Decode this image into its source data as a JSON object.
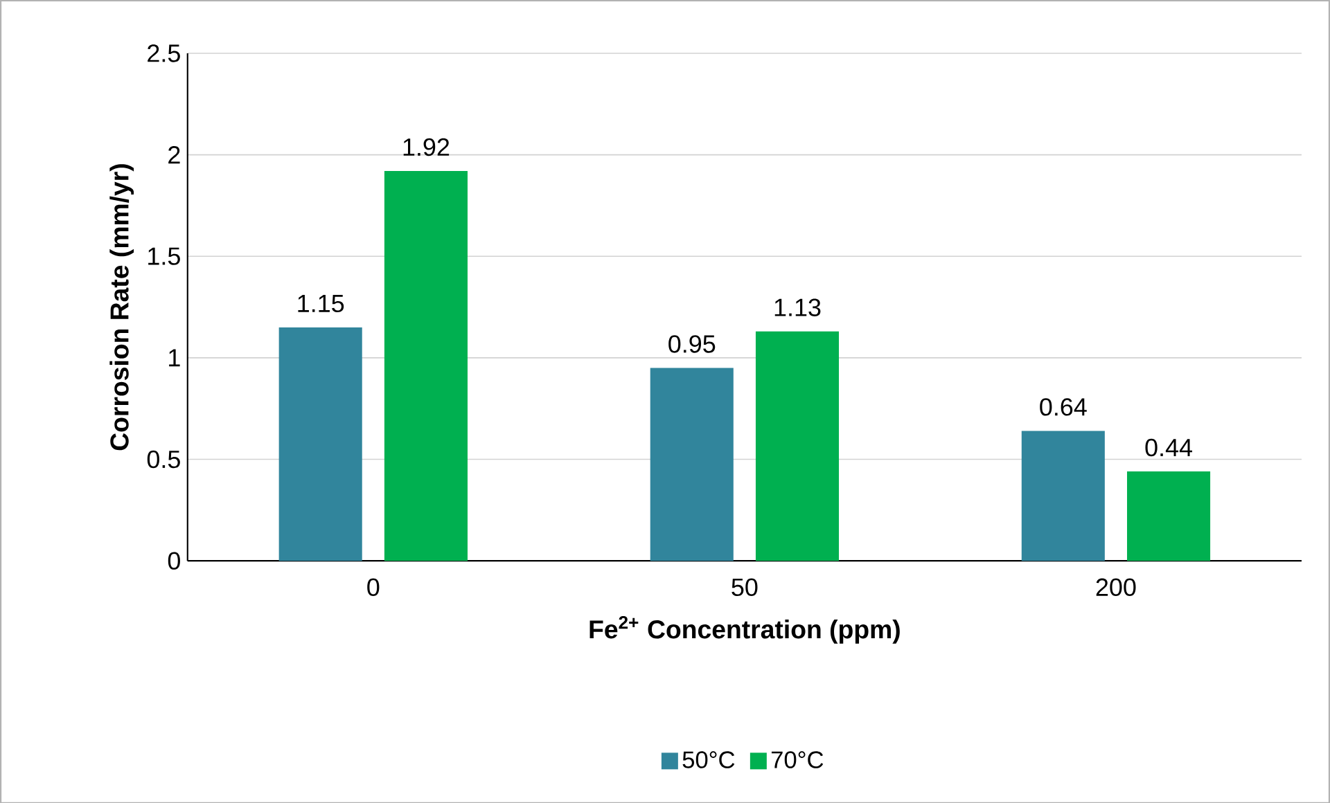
{
  "chart_data": {
    "type": "bar",
    "xlabel": "Fe$^{2+}$ Concentration (ppm)",
    "ylabel": "Corrosion Rate  (mm/yr)",
    "categories": [
      "0",
      "50",
      "200"
    ],
    "series": [
      {
        "name": "50°C",
        "color": "#31859c",
        "values": [
          1.15,
          0.95,
          0.64
        ]
      },
      {
        "name": "70°C",
        "color": "#00b050",
        "values": [
          1.92,
          1.13,
          0.44
        ]
      }
    ],
    "ylim": [
      0,
      2.5
    ],
    "yticks": [
      0,
      0.5,
      1,
      1.5,
      2,
      2.5
    ],
    "grid": "y",
    "legend": "bottom",
    "data_labels": true
  }
}
